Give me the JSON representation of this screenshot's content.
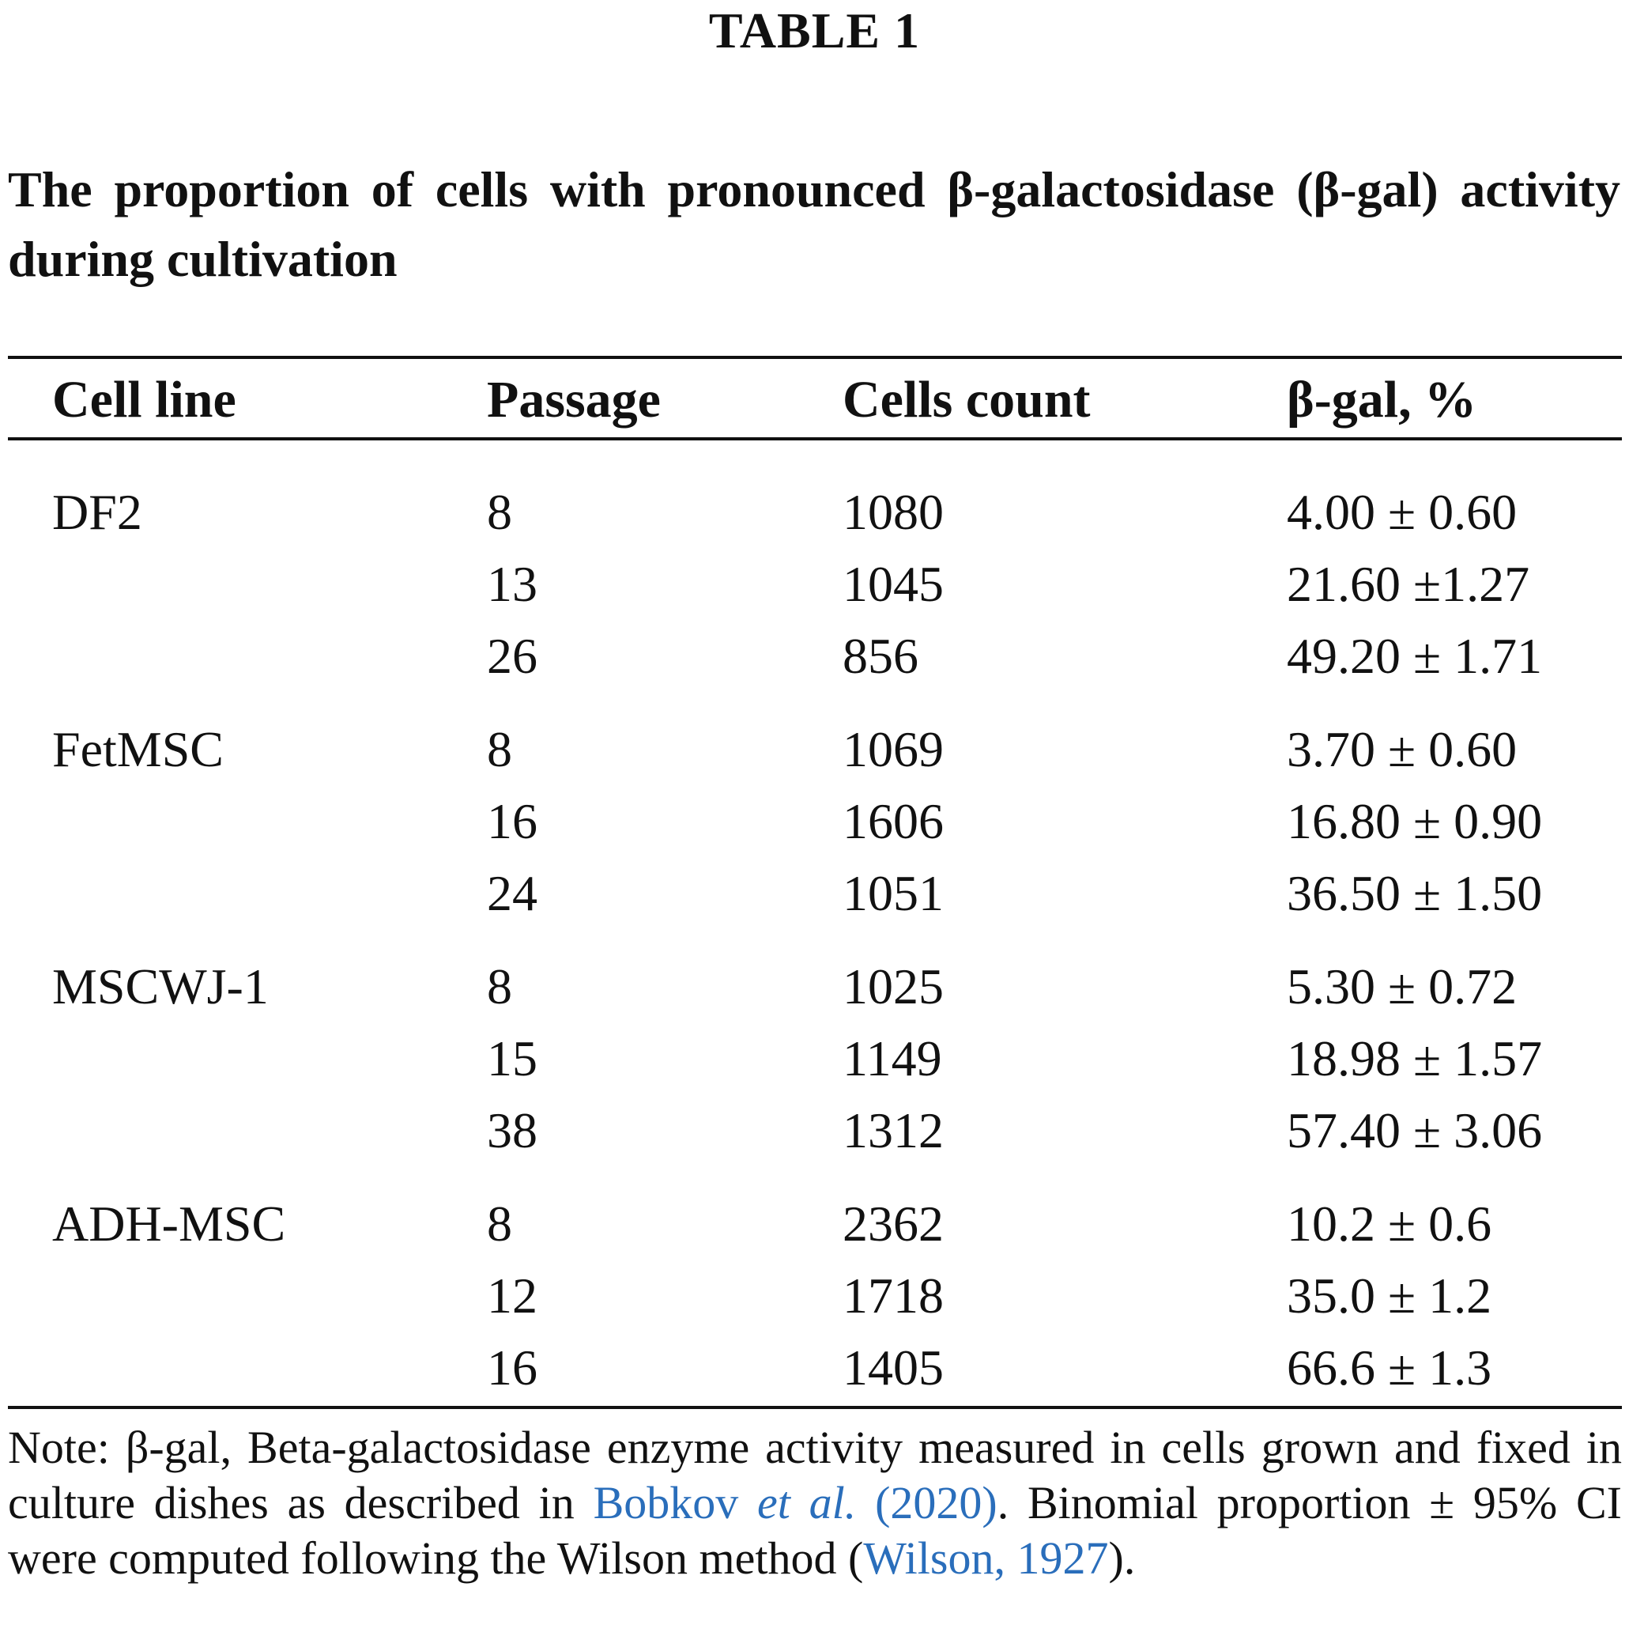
{
  "table_label": "TABLE 1",
  "caption": "The proportion of cells with pronounced β-galactosidase (β-gal) activity during cultivation",
  "headers": [
    "Cell line",
    "Passage",
    "Cells count",
    "β-gal, %"
  ],
  "groups": [
    {
      "cell_line": "DF2",
      "rows": [
        {
          "passage": "8",
          "count": "1080",
          "bgal": "4.00 ± 0.60"
        },
        {
          "passage": "13",
          "count": "1045",
          "bgal": "21.60 ±1.27"
        },
        {
          "passage": "26",
          "count": "856",
          "bgal": "49.20 ± 1.71"
        }
      ]
    },
    {
      "cell_line": "FetMSC",
      "rows": [
        {
          "passage": "8",
          "count": "1069",
          "bgal": "3.70 ± 0.60"
        },
        {
          "passage": "16",
          "count": "1606",
          "bgal": "16.80 ± 0.90"
        },
        {
          "passage": "24",
          "count": "1051",
          "bgal": "36.50 ± 1.50"
        }
      ]
    },
    {
      "cell_line": "MSCWJ-1",
      "rows": [
        {
          "passage": "8",
          "count": "1025",
          "bgal": "5.30 ± 0.72"
        },
        {
          "passage": "15",
          "count": "1149",
          "bgal": "18.98 ± 1.57"
        },
        {
          "passage": "38",
          "count": "1312",
          "bgal": "57.40 ± 3.06"
        }
      ]
    },
    {
      "cell_line": "ADH-MSC",
      "rows": [
        {
          "passage": "8",
          "count": "2362",
          "bgal": "10.2 ± 0.6"
        },
        {
          "passage": "12",
          "count": "1718",
          "bgal": "35.0 ± 1.2"
        },
        {
          "passage": "16",
          "count": "1405",
          "bgal": "66.6 ± 1.3"
        }
      ]
    }
  ],
  "note": {
    "part1": "Note: β-gal, Beta-galactosidase enzyme activity measured in cells grown and fixed in culture dishes as described in ",
    "link1_author": "Bobkov ",
    "link1_etal": "et al.",
    "link1_year": " (2020)",
    "part2": ". Binomial proportion ± 95% CI were computed following the Wilson method (",
    "link2": "Wilson, 1927",
    "part3": ")."
  },
  "colors": {
    "text": "#111111",
    "link": "#2a6ebb",
    "background": "#ffffff"
  }
}
